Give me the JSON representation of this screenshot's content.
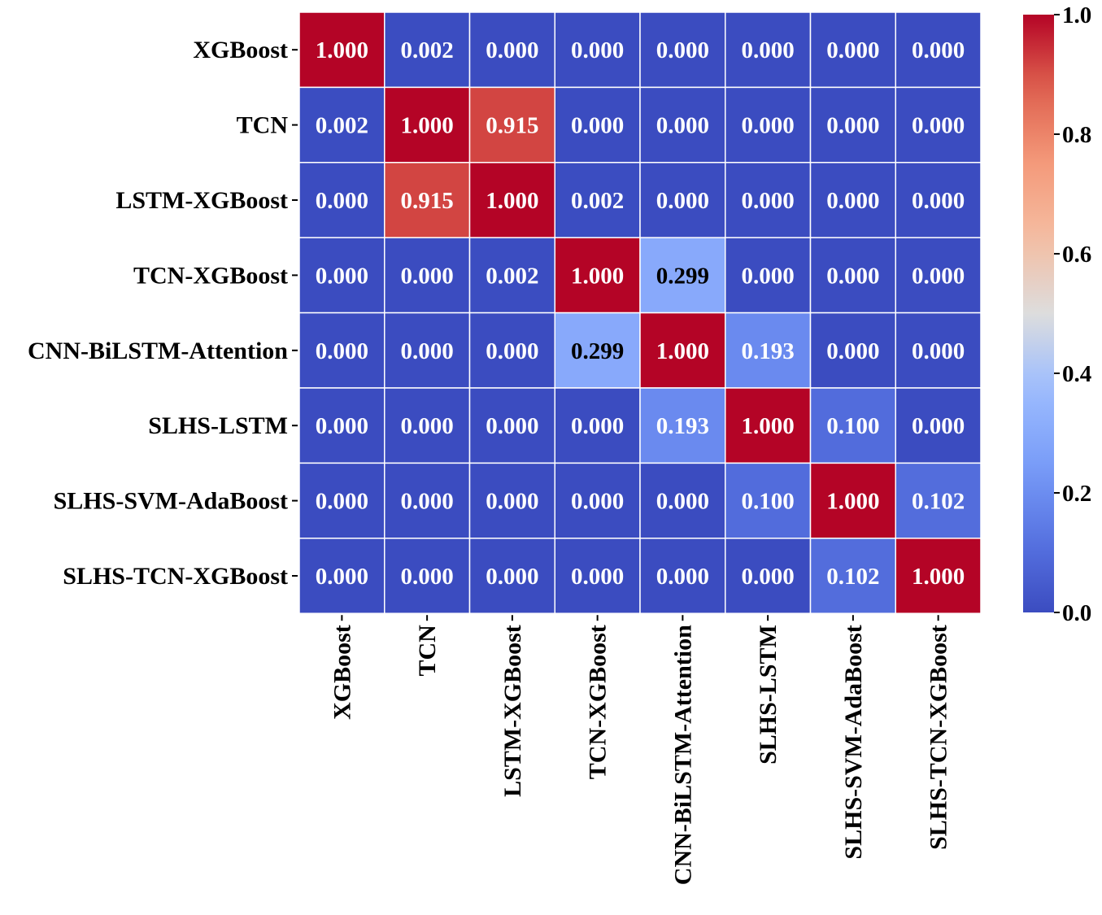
{
  "chart_data": {
    "type": "heatmap",
    "title": "",
    "xlabel": "",
    "ylabel": "",
    "row_labels": [
      "XGBoost",
      "TCN",
      "LSTM-XGBoost",
      "TCN-XGBoost",
      "CNN-BiLSTM-Attention",
      "SLHS-LSTM",
      "SLHS-SVM-AdaBoost",
      "SLHS-TCN-XGBoost"
    ],
    "col_labels": [
      "XGBoost",
      "TCN",
      "LSTM-XGBoost",
      "TCN-XGBoost",
      "CNN-BiLSTM-Attention",
      "SLHS-LSTM",
      "SLHS-SVM-AdaBoost",
      "SLHS-TCN-XGBoost"
    ],
    "values": [
      [
        1.0,
        0.002,
        0.0,
        0.0,
        0.0,
        0.0,
        0.0,
        0.0
      ],
      [
        0.002,
        1.0,
        0.915,
        0.0,
        0.0,
        0.0,
        0.0,
        0.0
      ],
      [
        0.0,
        0.915,
        1.0,
        0.002,
        0.0,
        0.0,
        0.0,
        0.0
      ],
      [
        0.0,
        0.0,
        0.002,
        1.0,
        0.299,
        0.0,
        0.0,
        0.0
      ],
      [
        0.0,
        0.0,
        0.0,
        0.299,
        1.0,
        0.193,
        0.0,
        0.0
      ],
      [
        0.0,
        0.0,
        0.0,
        0.0,
        0.193,
        1.0,
        0.1,
        0.0
      ],
      [
        0.0,
        0.0,
        0.0,
        0.0,
        0.0,
        0.1,
        1.0,
        0.102
      ],
      [
        0.0,
        0.0,
        0.0,
        0.0,
        0.0,
        0.0,
        0.102,
        1.0
      ]
    ],
    "value_format_decimals": 3,
    "colorscale": "coolwarm",
    "color_range": [
      0.0,
      1.0
    ],
    "colorbar_ticks": [
      "0.0",
      "0.2",
      "0.4",
      "0.6",
      "0.8",
      "1.0"
    ],
    "colorbar_tick_values": [
      0.0,
      0.2,
      0.4,
      0.6,
      0.8,
      1.0
    ],
    "colorbar_position": "right",
    "grid_lines": true
  }
}
